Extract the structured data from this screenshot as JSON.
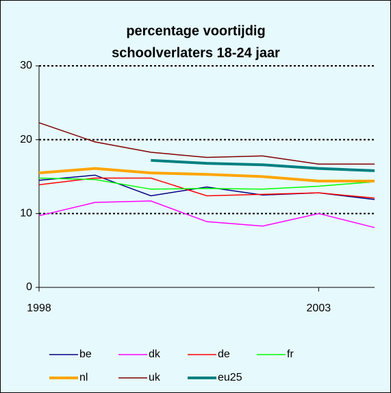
{
  "chart_data": {
    "type": "line",
    "title": [
      "percentage voortijdig",
      "schoolverlaters 18-24 jaar"
    ],
    "x": [
      1998,
      1999,
      2000,
      2001,
      2002,
      2003,
      2004
    ],
    "xlim": [
      1998,
      2004
    ],
    "xticks": [
      1998,
      2003
    ],
    "ylim": [
      0,
      30
    ],
    "yticks": [
      0,
      10,
      20,
      30
    ],
    "grid": true,
    "series": [
      {
        "name": "be",
        "color": "#000080",
        "width": 1.5,
        "values": [
          14.5,
          15.2,
          12.4,
          13.6,
          12.5,
          12.8,
          11.9
        ]
      },
      {
        "name": "dk",
        "color": "#ff00ff",
        "width": 1.5,
        "values": [
          9.7,
          11.5,
          11.7,
          8.9,
          8.3,
          10.0,
          8.1
        ]
      },
      {
        "name": "de",
        "color": "#ff0000",
        "width": 1.5,
        "values": [
          13.9,
          14.8,
          14.8,
          12.4,
          12.6,
          12.8,
          12.1
        ]
      },
      {
        "name": "fr",
        "color": "#00ff00",
        "width": 1.5,
        "values": [
          14.8,
          14.6,
          13.3,
          13.4,
          13.3,
          13.7,
          14.3
        ]
      },
      {
        "name": "nl",
        "color": "#ffa500",
        "width": 4,
        "values": [
          15.5,
          16.1,
          15.5,
          15.3,
          15.0,
          14.4,
          14.4
        ]
      },
      {
        "name": "uk",
        "color": "#800000",
        "width": 1.5,
        "values": [
          22.3,
          19.7,
          18.3,
          17.6,
          17.8,
          16.7,
          16.7
        ]
      },
      {
        "name": "eu25",
        "color": "#008080",
        "width": 4,
        "values": [
          null,
          null,
          17.2,
          16.8,
          16.6,
          16.1,
          15.8
        ]
      }
    ]
  }
}
